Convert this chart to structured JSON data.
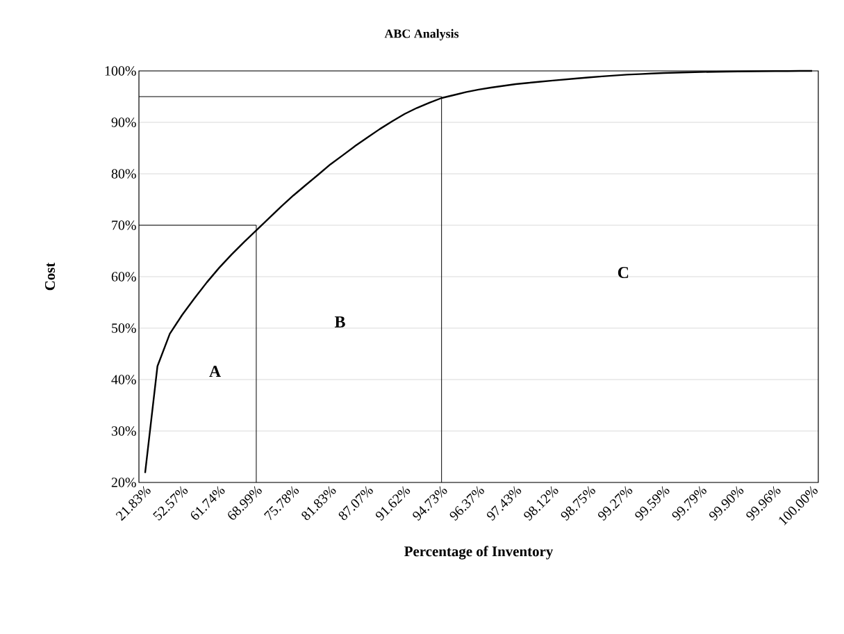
{
  "chart_data": {
    "type": "line",
    "title": "ABC Analysis",
    "xlabel": "Percentage of Inventory",
    "ylabel": "Cost",
    "categories": [
      "21.83%",
      null,
      null,
      "52.57%",
      null,
      null,
      "61.74%",
      null,
      null,
      "68.99%",
      null,
      null,
      "75.78%",
      null,
      null,
      "81.83%",
      null,
      null,
      "87.07%",
      null,
      null,
      "91.62%",
      null,
      null,
      "94.73%",
      null,
      null,
      "96.37%",
      null,
      null,
      "97.43%",
      null,
      null,
      "98.12%",
      null,
      null,
      "98.75%",
      null,
      null,
      "99.27%",
      null,
      null,
      "99.59%",
      null,
      null,
      "99.79%",
      null,
      null,
      "99.90%",
      null,
      null,
      "99.96%",
      null,
      null,
      "100.00%"
    ],
    "series": [
      {
        "color": "#000000",
        "values": [
          21.83,
          42.6,
          48.9,
          52.57,
          55.8,
          58.9,
          61.74,
          64.3,
          66.7,
          68.99,
          71.3,
          73.6,
          75.78,
          77.8,
          79.8,
          81.83,
          83.6,
          85.4,
          87.07,
          88.7,
          90.2,
          91.62,
          92.8,
          93.8,
          94.73,
          95.3,
          95.9,
          96.37,
          96.75,
          97.1,
          97.43,
          97.67,
          97.9,
          98.12,
          98.33,
          98.54,
          98.75,
          98.93,
          99.1,
          99.27,
          99.38,
          99.49,
          99.59,
          99.66,
          99.73,
          99.79,
          99.83,
          99.87,
          99.9,
          99.92,
          99.94,
          99.96,
          99.97,
          99.99,
          100.0
        ]
      }
    ],
    "ylim": [
      20,
      100
    ],
    "yticks": [
      {
        "value": 20,
        "label": "20%"
      },
      {
        "value": 30,
        "label": "30%"
      },
      {
        "value": 40,
        "label": "40%"
      },
      {
        "value": 50,
        "label": "50%"
      },
      {
        "value": 60,
        "label": "60%"
      },
      {
        "value": 70,
        "label": "70%"
      },
      {
        "value": 80,
        "label": "80%"
      },
      {
        "value": 90,
        "label": "90%"
      },
      {
        "value": 100,
        "label": "100%"
      }
    ],
    "grid": "y",
    "ref_lines": [
      {
        "axis": "y",
        "value": 70,
        "color": "#000000"
      },
      {
        "axis": "x",
        "value": "68.99%",
        "color": "#000000"
      },
      {
        "axis": "y",
        "value": 95,
        "color": "#000000"
      },
      {
        "axis": "x",
        "value": "94.73%",
        "color": "#000000"
      }
    ],
    "annotations": [
      "A",
      "B",
      "C"
    ]
  }
}
